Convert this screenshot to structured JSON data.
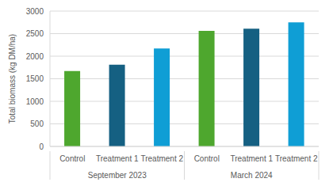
{
  "chart_data": {
    "type": "bar",
    "categories": [
      "Control",
      "Treatment 1",
      "Treatment 2",
      "Control",
      "Treatment 1",
      "Treatment 2"
    ],
    "category_groups": [
      "September 2023",
      "September 2023",
      "September 2023",
      "March 2024",
      "March 2024",
      "March 2024"
    ],
    "values": [
      1670,
      1810,
      2170,
      2560,
      2610,
      2750
    ],
    "colors": [
      "#4ea72e",
      "#156082",
      "#0f9ed5",
      "#4ea72e",
      "#156082",
      "#0f9ed5"
    ],
    "y_label": "Total biomass (kg DM/ha)",
    "ylim": [
      0,
      3000
    ],
    "yticks": [
      0,
      500,
      1000,
      1500,
      2000,
      2500,
      3000
    ],
    "grid": true
  }
}
